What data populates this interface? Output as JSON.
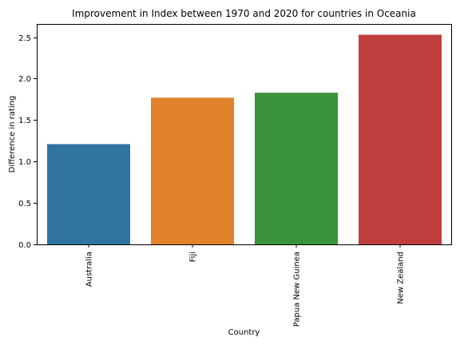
{
  "chart_data": {
    "type": "bar",
    "title": "Improvement in Index between 1970 and 2020 for countries in Oceania",
    "xlabel": "Country",
    "ylabel": "Difference in rating",
    "categories": [
      "Australia",
      "Fiji",
      "Papua New Guinea",
      "New Zealand"
    ],
    "values": [
      1.21,
      1.77,
      1.83,
      2.53
    ],
    "colors": [
      "#3274a1",
      "#e1812c",
      "#3a923a",
      "#c03d3e"
    ],
    "yticks": [
      "0.0",
      "0.5",
      "1.0",
      "1.5",
      "2.0",
      "2.5"
    ],
    "ylim": [
      0,
      2.66
    ],
    "grid": false,
    "legend": "none"
  }
}
